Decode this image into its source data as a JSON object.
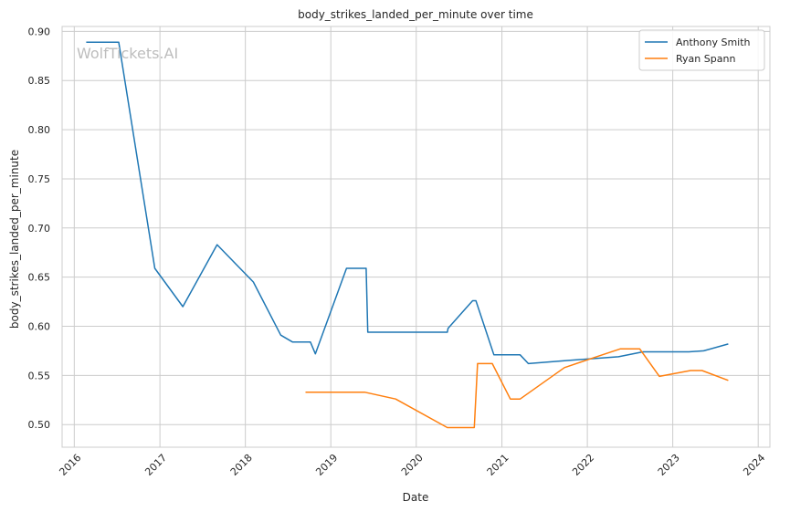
{
  "chart_data": {
    "type": "line",
    "title": "body_strikes_landed_per_minute over time",
    "xlabel": "Date",
    "ylabel": "body_strikes_landed_per_minute",
    "watermark": "WolfTickets.AI",
    "xlim": [
      "2015-11-10",
      "2024-02-20"
    ],
    "ylim": [
      0.477,
      0.905
    ],
    "x_ticks": [
      "2016",
      "2017",
      "2018",
      "2019",
      "2020",
      "2021",
      "2022",
      "2023",
      "2024"
    ],
    "y_ticks": [
      0.5,
      0.55,
      0.6,
      0.65,
      0.7,
      0.75,
      0.8,
      0.85,
      0.9
    ],
    "y_tick_labels": [
      "0.50",
      "0.55",
      "0.60",
      "0.65",
      "0.70",
      "0.75",
      "0.80",
      "0.85",
      "0.90"
    ],
    "grid": true,
    "legend_position": "top-right",
    "series": [
      {
        "name": "Anthony Smith",
        "color": "#1f77b4",
        "points": [
          [
            "2016-02-21",
            0.889
          ],
          [
            "2016-07-09",
            0.889
          ],
          [
            "2016-12-10",
            0.659
          ],
          [
            "2017-04-09",
            0.62
          ],
          [
            "2017-09-02",
            0.683
          ],
          [
            "2018-02-04",
            0.645
          ],
          [
            "2018-06-01",
            0.591
          ],
          [
            "2018-07-22",
            0.584
          ],
          [
            "2018-10-06",
            0.584
          ],
          [
            "2018-10-27",
            0.572
          ],
          [
            "2019-03-09",
            0.659
          ],
          [
            "2019-06-01",
            0.659
          ],
          [
            "2019-06-08",
            0.594
          ],
          [
            "2020-05-13",
            0.594
          ],
          [
            "2020-05-16",
            0.598
          ],
          [
            "2020-08-29",
            0.626
          ],
          [
            "2020-09-12",
            0.626
          ],
          [
            "2020-11-28",
            0.571
          ],
          [
            "2021-03-20",
            0.571
          ],
          [
            "2021-04-24",
            0.562
          ],
          [
            "2021-09-25",
            0.565
          ],
          [
            "2022-01-15",
            0.567
          ],
          [
            "2022-05-14",
            0.569
          ],
          [
            "2022-08-27",
            0.574
          ],
          [
            "2023-03-11",
            0.574
          ],
          [
            "2023-05-13",
            0.575
          ],
          [
            "2023-08-26",
            0.582
          ]
        ]
      },
      {
        "name": "Ryan Spann",
        "color": "#ff7f0e",
        "points": [
          [
            "2018-09-15",
            0.533
          ],
          [
            "2019-05-25",
            0.533
          ],
          [
            "2019-10-05",
            0.526
          ],
          [
            "2020-05-13",
            0.497
          ],
          [
            "2020-09-05",
            0.497
          ],
          [
            "2020-09-19",
            0.562
          ],
          [
            "2020-11-21",
            0.562
          ],
          [
            "2021-02-06",
            0.526
          ],
          [
            "2021-03-20",
            0.526
          ],
          [
            "2021-09-25",
            0.558
          ],
          [
            "2022-01-15",
            0.567
          ],
          [
            "2022-05-21",
            0.577
          ],
          [
            "2022-08-13",
            0.577
          ],
          [
            "2022-11-05",
            0.549
          ],
          [
            "2023-03-18",
            0.555
          ],
          [
            "2023-05-06",
            0.555
          ],
          [
            "2023-08-26",
            0.545
          ]
        ]
      }
    ]
  }
}
